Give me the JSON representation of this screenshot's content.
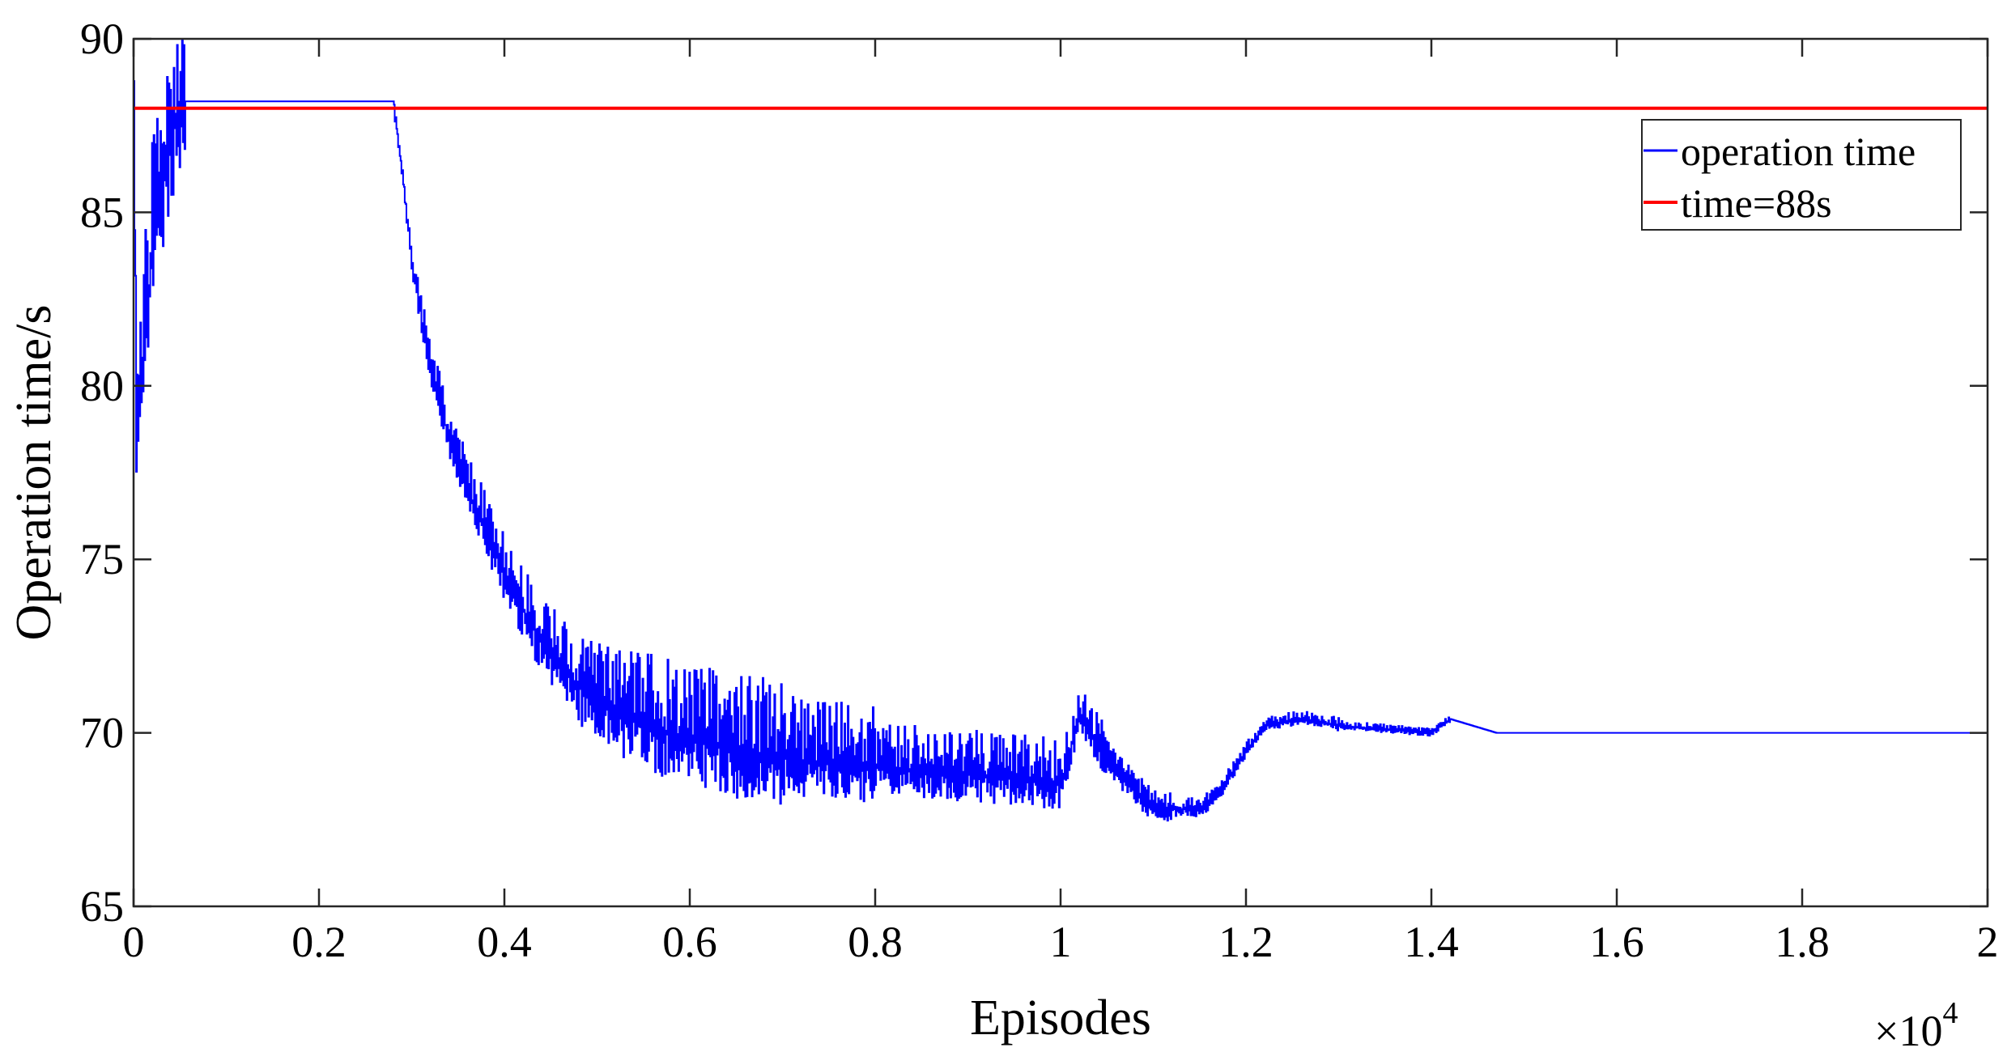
{
  "chart_data": {
    "type": "line",
    "xlabel": "Episodes",
    "ylabel": "Operation time/s",
    "x_multiplier_label": "×10",
    "x_multiplier_exponent": "4",
    "xlim": [
      0,
      2
    ],
    "ylim": [
      65,
      90
    ],
    "x_ticks": [
      "0",
      "0.2",
      "0.4",
      "0.6",
      "0.8",
      "1",
      "1.2",
      "1.4",
      "1.6",
      "1.8",
      "2"
    ],
    "y_ticks": [
      "65",
      "70",
      "75",
      "80",
      "85",
      "90"
    ],
    "grid": false,
    "legend_position": "top-right",
    "series": [
      {
        "name": "operation time",
        "color": "#0000ff",
        "x": [
          0,
          0.003,
          0.006,
          0.01,
          0.015,
          0.02,
          0.03,
          0.04,
          0.05,
          0.055,
          0.28,
          0.29,
          0.3,
          0.32,
          0.34,
          0.36,
          0.38,
          0.4,
          0.42,
          0.45,
          0.48,
          0.5,
          0.55,
          0.6,
          0.65,
          0.7,
          0.75,
          0.8,
          0.85,
          0.9,
          0.95,
          1.0,
          1.02,
          1.05,
          1.08,
          1.1,
          1.15,
          1.17,
          1.2,
          1.22,
          1.24,
          1.26,
          1.28,
          1.3,
          1.35,
          1.4,
          1.42,
          1.47,
          1.5,
          1.7,
          2.0
        ],
        "y": [
          88.2,
          77.5,
          80,
          81,
          82.5,
          84,
          85.5,
          87,
          88.1,
          88.2,
          88.2,
          86,
          83.5,
          80.5,
          78.5,
          77,
          75.8,
          74.5,
          73.5,
          72.2,
          71.3,
          70.8,
          70.2,
          69.8,
          69.5,
          69.3,
          69.1,
          69,
          68.9,
          68.8,
          68.7,
          68.5,
          70.5,
          69.2,
          68.3,
          67.8,
          67.8,
          68.2,
          69.5,
          70.2,
          70.3,
          70.4,
          70.3,
          70.2,
          70.1,
          70,
          70.4,
          70,
          70,
          70,
          70
        ]
      },
      {
        "name": "time=88s",
        "color": "#ff0000",
        "x": [
          0,
          2
        ],
        "y": [
          88,
          88
        ]
      }
    ]
  }
}
